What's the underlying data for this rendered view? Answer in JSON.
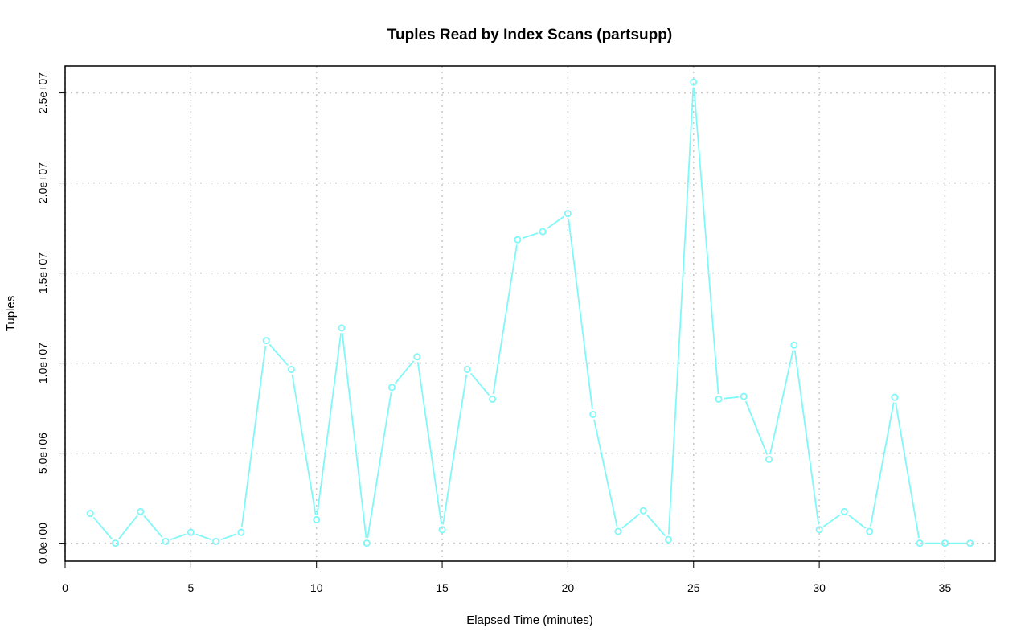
{
  "chart_data": {
    "type": "line",
    "title": "Tuples Read by Index Scans (partsupp)",
    "xlabel": "Elapsed Time (minutes)",
    "ylabel": "Tuples",
    "xlim": [
      0,
      37
    ],
    "ylim": [
      -1000000,
      26500000
    ],
    "x_ticks": [
      0,
      5,
      10,
      15,
      20,
      25,
      30,
      35
    ],
    "x_tick_labels": [
      "0",
      "5",
      "10",
      "15",
      "20",
      "25",
      "30",
      "35"
    ],
    "y_ticks": [
      0,
      5000000,
      10000000,
      15000000,
      20000000,
      25000000
    ],
    "y_tick_labels": [
      "0.0e+00",
      "5.0e+06",
      "1.0e+07",
      "1.5e+07",
      "2.0e+07",
      "2.5e+07"
    ],
    "grid": true,
    "series": [
      {
        "color": "#7ff8f8",
        "marker": "open-circle",
        "x": [
          1,
          2,
          3,
          4,
          5,
          6,
          7,
          8,
          9,
          10,
          11,
          12,
          13,
          14,
          15,
          16,
          17,
          18,
          19,
          20,
          21,
          22,
          23,
          24,
          25,
          26,
          27,
          28,
          29,
          30,
          31,
          32,
          33,
          34,
          35,
          36
        ],
        "y": [
          1650000,
          0,
          1750000,
          100000,
          600000,
          100000,
          600000,
          11250000,
          9650000,
          1300000,
          11950000,
          0,
          8650000,
          10350000,
          750000,
          9650000,
          8000000,
          16850000,
          17300000,
          18300000,
          7150000,
          650000,
          1800000,
          200000,
          25600000,
          8000000,
          8150000,
          4650000,
          11000000,
          750000,
          1750000,
          650000,
          8100000,
          0,
          0,
          0
        ]
      }
    ]
  }
}
